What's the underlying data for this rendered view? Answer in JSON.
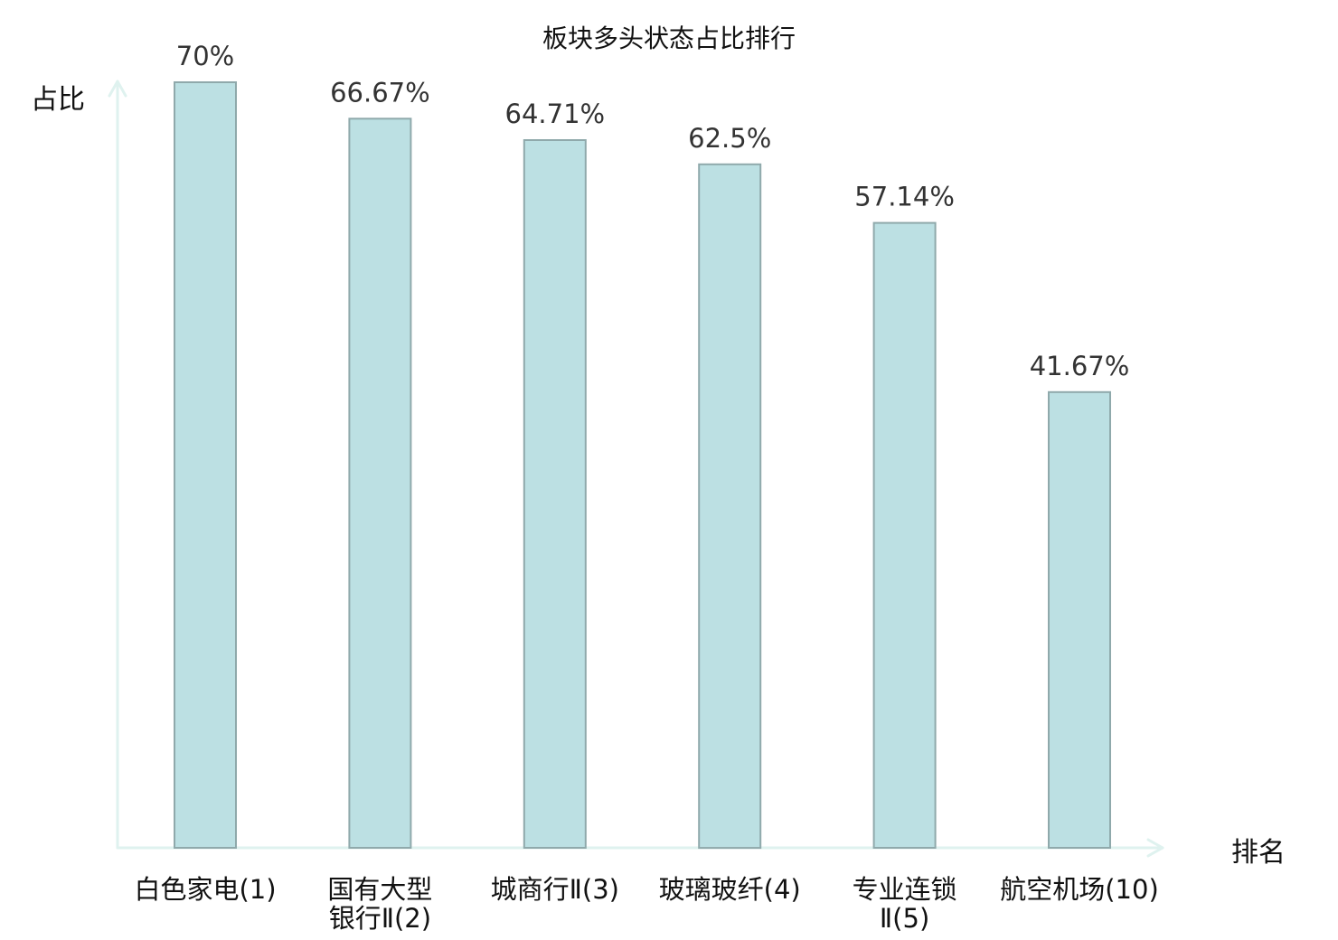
{
  "chart_data": {
    "type": "bar",
    "title": "板块多头状态占比排行",
    "ylabel": "占比",
    "xlabel": "排名",
    "ylim": [
      0,
      70
    ],
    "grid": false,
    "categories": [
      [
        "白色家电(1)"
      ],
      [
        "国有大型",
        "银行Ⅱ(2)"
      ],
      [
        "城商行Ⅱ(3)"
      ],
      [
        "玻璃玻纤(4)"
      ],
      [
        "专业连锁",
        "Ⅱ(5)"
      ],
      [
        "航空机场(10)"
      ]
    ],
    "values": [
      70,
      66.67,
      64.71,
      62.5,
      57.14,
      41.67
    ],
    "value_labels": [
      "70%",
      "66.67%",
      "64.71%",
      "62.5%",
      "57.14%",
      "41.67%"
    ],
    "highlight_index": 5,
    "colors": {
      "bar_fill": "#bce0e3",
      "bar_stroke": "#8fa9ab",
      "axis": "#dff2ef",
      "highlight_text": "#e00000",
      "text": "#111111",
      "value_text": "#333333"
    }
  }
}
